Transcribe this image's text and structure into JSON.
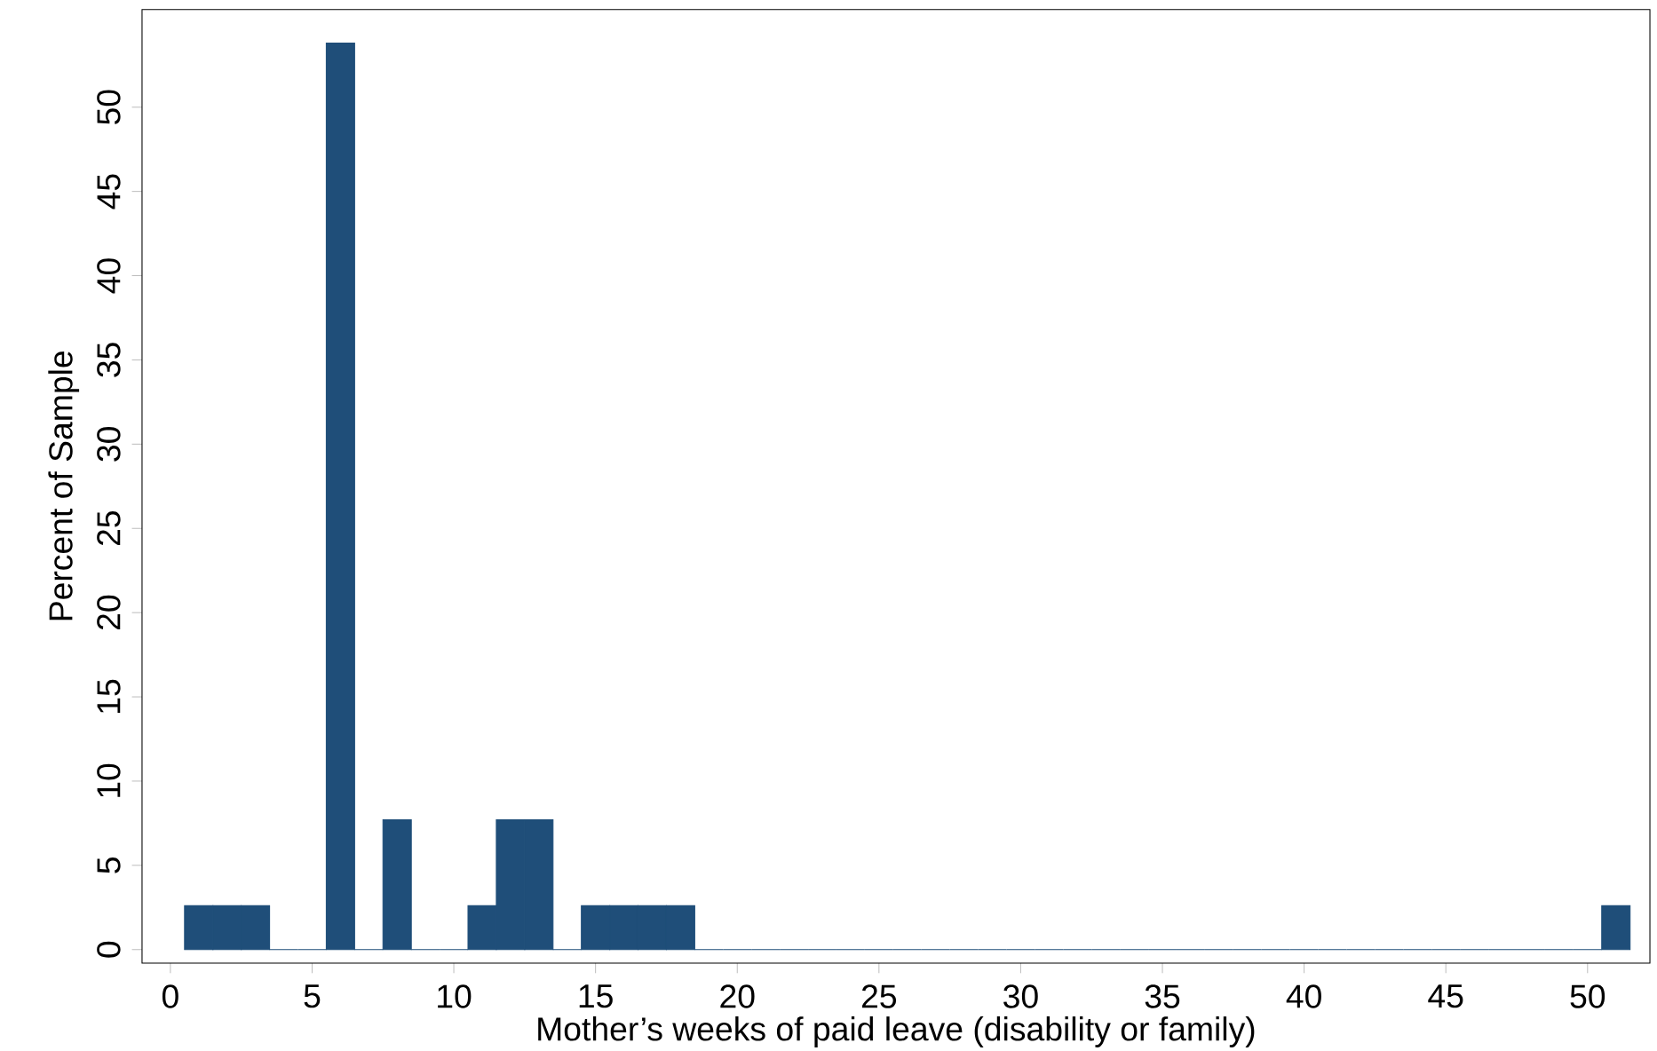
{
  "chart_data": {
    "type": "histogram",
    "xlabel": "Mother’s weeks of paid leave (disability or family)",
    "ylabel": "Percent of Sample",
    "bins": [
      0.5,
      1.5,
      2.5,
      3.5,
      4.5,
      5.5,
      6.5,
      7.5,
      8.5,
      9.5,
      10.5,
      11.5,
      12.5,
      13.5,
      14.5,
      15.5,
      16.5,
      17.5,
      18.5,
      19.5,
      20.5,
      21.5,
      22.5,
      23.5,
      24.5,
      25.5,
      26.5,
      27.5,
      28.5,
      29.5,
      30.5,
      31.5,
      32.5,
      33.5,
      34.5,
      35.5,
      36.5,
      37.5,
      38.5,
      39.5,
      40.5,
      41.5,
      42.5,
      43.5,
      44.5,
      45.5,
      46.5,
      47.5,
      48.5,
      49.5,
      50.5,
      51.5
    ],
    "values": [
      2.6,
      2.6,
      2.6,
      0,
      0,
      53.8,
      0,
      7.7,
      0,
      0,
      2.6,
      7.7,
      7.7,
      0,
      2.6,
      2.6,
      2.6,
      2.6,
      0,
      0,
      0,
      0,
      0,
      0,
      0,
      0,
      0,
      0,
      0,
      0,
      0,
      0,
      0,
      0,
      0,
      0,
      0,
      0,
      0,
      0,
      0,
      0,
      0,
      0,
      0,
      0,
      0,
      0,
      0,
      0,
      2.6
    ],
    "color": "#1f4e79",
    "xlim": [
      -1,
      52.2
    ],
    "ylim": [
      -0.8,
      55.8
    ],
    "xticks": [
      0,
      5,
      10,
      15,
      20,
      25,
      30,
      35,
      40,
      45,
      50
    ],
    "yticks": [
      0,
      5,
      10,
      15,
      20,
      25,
      30,
      35,
      40,
      45,
      50
    ],
    "grid": false
  }
}
